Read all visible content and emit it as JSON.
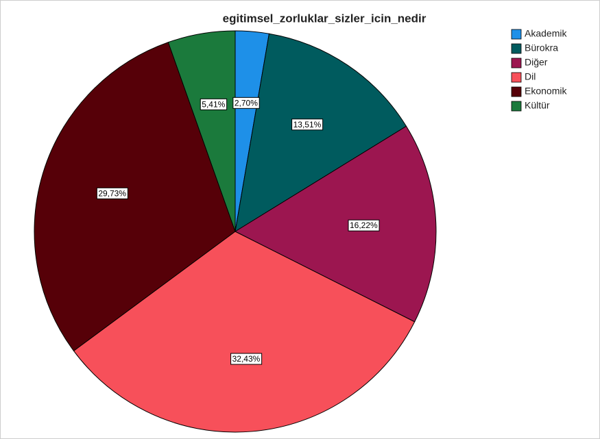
{
  "chart_data": {
    "type": "pie",
    "title": "egitimsel_zorluklar_sizler_icin_nedir",
    "categories": [
      "Akademik",
      "Bürokra",
      "Diğer",
      "Dil",
      "Ekonomik",
      "Kültür"
    ],
    "values": [
      2.7,
      13.51,
      16.22,
      32.43,
      29.73,
      5.41
    ],
    "value_labels": [
      "2,70%",
      "13,51%",
      "16,22%",
      "32,43%",
      "29,73%",
      "5,41%"
    ],
    "colors": [
      "#1e90e8",
      "#005b5e",
      "#9c1650",
      "#f7505a",
      "#560008",
      "#1b7a3c"
    ],
    "legend": "upper right"
  }
}
